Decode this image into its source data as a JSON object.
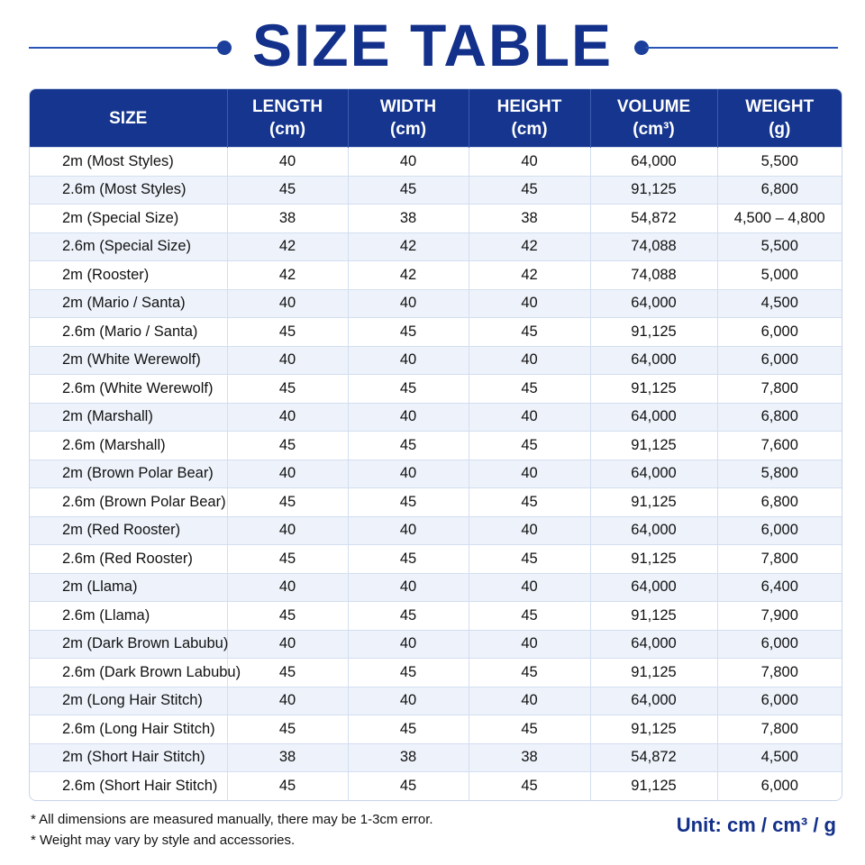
{
  "header": {
    "title": "SIZE TABLE"
  },
  "table": {
    "columns": [
      [
        "SIZE"
      ],
      [
        "LENGTH",
        "(cm)"
      ],
      [
        "WIDTH",
        "(cm)"
      ],
      [
        "HEIGHT",
        "(cm)"
      ],
      [
        "VOLUME",
        "(cm³)"
      ],
      [
        "WEIGHT",
        "(g)"
      ]
    ],
    "rows": [
      [
        "2m (Most Styles)",
        "40",
        "40",
        "40",
        "64,000",
        "5,500"
      ],
      [
        "2.6m (Most Styles)",
        "45",
        "45",
        "45",
        "91,125",
        "6,800"
      ],
      [
        "2m (Special Size)",
        "38",
        "38",
        "38",
        "54,872",
        "4,500 – 4,800"
      ],
      [
        "2.6m (Special Size)",
        "42",
        "42",
        "42",
        "74,088",
        "5,500"
      ],
      [
        "2m (Rooster)",
        "42",
        "42",
        "42",
        "74,088",
        "5,000"
      ],
      [
        "2m (Mario / Santa)",
        "40",
        "40",
        "40",
        "64,000",
        "4,500"
      ],
      [
        "2.6m (Mario / Santa)",
        "45",
        "45",
        "45",
        "91,125",
        "6,000"
      ],
      [
        "2m (White Werewolf)",
        "40",
        "40",
        "40",
        "64,000",
        "6,000"
      ],
      [
        "2.6m (White Werewolf)",
        "45",
        "45",
        "45",
        "91,125",
        "7,800"
      ],
      [
        "2m (Marshall)",
        "40",
        "40",
        "40",
        "64,000",
        "6,800"
      ],
      [
        "2.6m (Marshall)",
        "45",
        "45",
        "45",
        "91,125",
        "7,600"
      ],
      [
        "2m (Brown Polar Bear)",
        "40",
        "40",
        "40",
        "64,000",
        "5,800"
      ],
      [
        "2.6m (Brown Polar Bear)",
        "45",
        "45",
        "45",
        "91,125",
        "6,800"
      ],
      [
        "2m (Red Rooster)",
        "40",
        "40",
        "40",
        "64,000",
        "6,000"
      ],
      [
        "2.6m (Red Rooster)",
        "45",
        "45",
        "45",
        "91,125",
        "7,800"
      ],
      [
        "2m (Llama)",
        "40",
        "40",
        "40",
        "64,000",
        "6,400"
      ],
      [
        "2.6m (Llama)",
        "45",
        "45",
        "45",
        "91,125",
        "7,900"
      ],
      [
        "2m (Dark Brown Labubu)",
        "40",
        "40",
        "40",
        "64,000",
        "6,000"
      ],
      [
        "2.6m (Dark Brown Labubu)",
        "45",
        "45",
        "45",
        "91,125",
        "7,800"
      ],
      [
        "2m (Long Hair Stitch)",
        "40",
        "40",
        "40",
        "64,000",
        "6,000"
      ],
      [
        "2.6m (Long Hair Stitch)",
        "45",
        "45",
        "45",
        "91,125",
        "7,800"
      ],
      [
        "2m (Short Hair Stitch)",
        "38",
        "38",
        "38",
        "54,872",
        "4,500"
      ],
      [
        "2.6m (Short Hair Stitch)",
        "45",
        "45",
        "45",
        "91,125",
        "6,000"
      ]
    ]
  },
  "footer": {
    "notes": [
      "* All dimensions are measured manually, there may be 1-3cm error.",
      "* Weight may vary by style and accessories."
    ],
    "unit": "Unit: cm / cm³ / g"
  }
}
